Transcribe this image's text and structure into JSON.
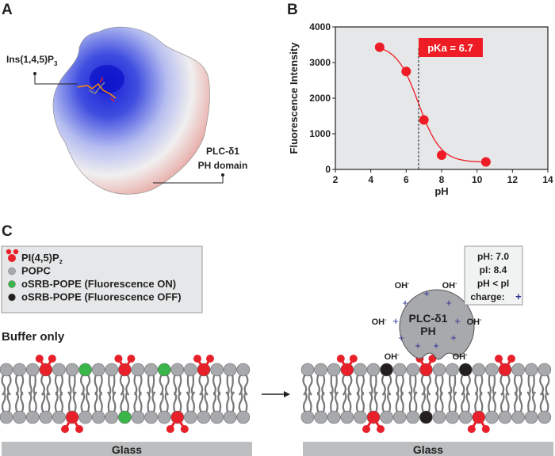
{
  "panels": {
    "a": {
      "letter": "A",
      "ligand_label": "Ins(1,4,5)P",
      "ligand_sub": "3",
      "protein_label_line1": "PLC-δ1",
      "protein_label_line2": "PH domain"
    },
    "b": {
      "letter": "B"
    },
    "c": {
      "letter": "C",
      "legend": [
        {
          "label": "PI(4,5)P",
          "sub": "2",
          "color": "#e8202a"
        },
        {
          "label": "POPC",
          "color": "#a7a9ac"
        },
        {
          "label": "oSRB-POPE (Fluorescence ON)",
          "color": "#39b54a"
        },
        {
          "label": "oSRB-POPE (Fluorescence OFF)",
          "color": "#231f20"
        }
      ],
      "left_title": "Buffer only",
      "glass_label": "Glass",
      "protein_line1": "PLC-δ1",
      "protein_line2": "PH",
      "ion_label": "OH",
      "ion_sup": "-",
      "charge_symbol": "+",
      "info_box": [
        "pH: 7.0",
        "pI: 8.4",
        "pH < pI",
        "charge:"
      ],
      "info_charge_symbol": "+"
    }
  },
  "chart_data": {
    "type": "scatter",
    "xlabel": "pH",
    "ylabel": "Fluorescence Intensity",
    "xlim": [
      2,
      14
    ],
    "ylim": [
      0,
      4000
    ],
    "xticks": [
      2,
      4,
      6,
      8,
      10,
      12,
      14
    ],
    "yticks": [
      0,
      1000,
      2000,
      3000,
      4000
    ],
    "x": [
      4.5,
      6,
      7,
      8,
      10.5
    ],
    "y": [
      3430,
      2750,
      1390,
      400,
      210
    ],
    "fit": "sigmoidal",
    "pka": 6.7,
    "annotation": "pKa = 6.7",
    "color": "#ee1c25",
    "background": "#e6e7e8",
    "grid": false
  }
}
